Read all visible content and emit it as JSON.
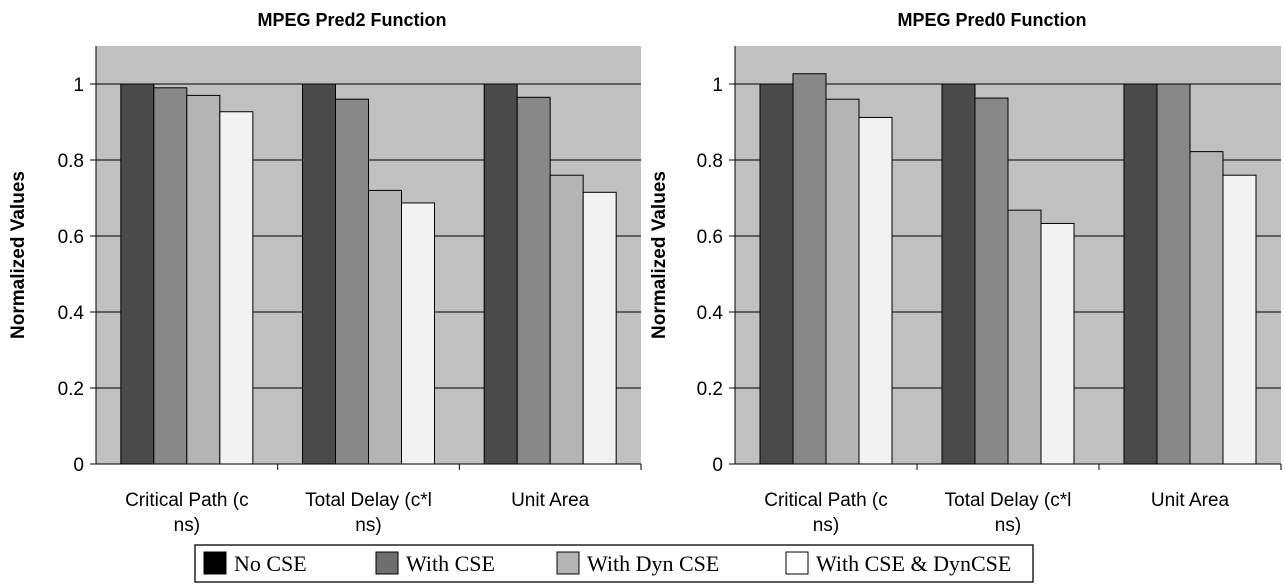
{
  "chart_data": [
    {
      "type": "bar",
      "title": "MPEG Pred2 Function",
      "xlabel": "",
      "ylabel": "Normalized Values",
      "ylim": [
        0,
        1.1
      ],
      "yticks": [
        "0",
        "0.2",
        "0.4",
        "0.6",
        "0.8",
        "1"
      ],
      "categories": [
        [
          "Critical Path (c",
          "ns)"
        ],
        [
          "Total Delay (c*l",
          "ns)"
        ],
        [
          "Unit Area"
        ]
      ],
      "series": [
        {
          "name": "No CSE",
          "values": [
            1.0,
            1.0,
            1.0
          ]
        },
        {
          "name": "With CSE",
          "values": [
            0.99,
            0.96,
            0.965
          ]
        },
        {
          "name": "With Dyn CSE",
          "values": [
            0.97,
            0.72,
            0.76
          ]
        },
        {
          "name": "With CSE & DynCSE",
          "values": [
            0.927,
            0.687,
            0.715
          ]
        }
      ]
    },
    {
      "type": "bar",
      "title": "MPEG Pred0 Function",
      "xlabel": "",
      "ylabel": "Normalized Values",
      "ylim": [
        0,
        1.1
      ],
      "yticks": [
        "0",
        "0.2",
        "0.4",
        "0.6",
        "0.8",
        "1"
      ],
      "categories": [
        [
          "Critical Path (c",
          "ns)"
        ],
        [
          "Total Delay (c*l",
          "ns)"
        ],
        [
          "Unit Area"
        ]
      ],
      "series": [
        {
          "name": "No CSE",
          "values": [
            1.0,
            1.0,
            1.0
          ]
        },
        {
          "name": "With CSE",
          "values": [
            1.027,
            0.963,
            1.0
          ]
        },
        {
          "name": "With Dyn CSE",
          "values": [
            0.96,
            0.668,
            0.822
          ]
        },
        {
          "name": "With CSE & DynCSE",
          "values": [
            0.912,
            0.633,
            0.76
          ]
        }
      ]
    }
  ],
  "colors": {
    "plot_background": "#c0c0c0",
    "gridline": "#000000",
    "series": [
      "#4a4a4a",
      "#888888",
      "#b4b4b4",
      "#f2f2f2"
    ],
    "legend_swatches": [
      "#000000",
      "#6e6e6e",
      "#b4b4b4",
      "#ffffff"
    ]
  },
  "legend": {
    "placement": "bottom-center",
    "items": [
      "No CSE",
      "With CSE",
      "With Dyn CSE",
      "With CSE & DynCSE"
    ]
  }
}
